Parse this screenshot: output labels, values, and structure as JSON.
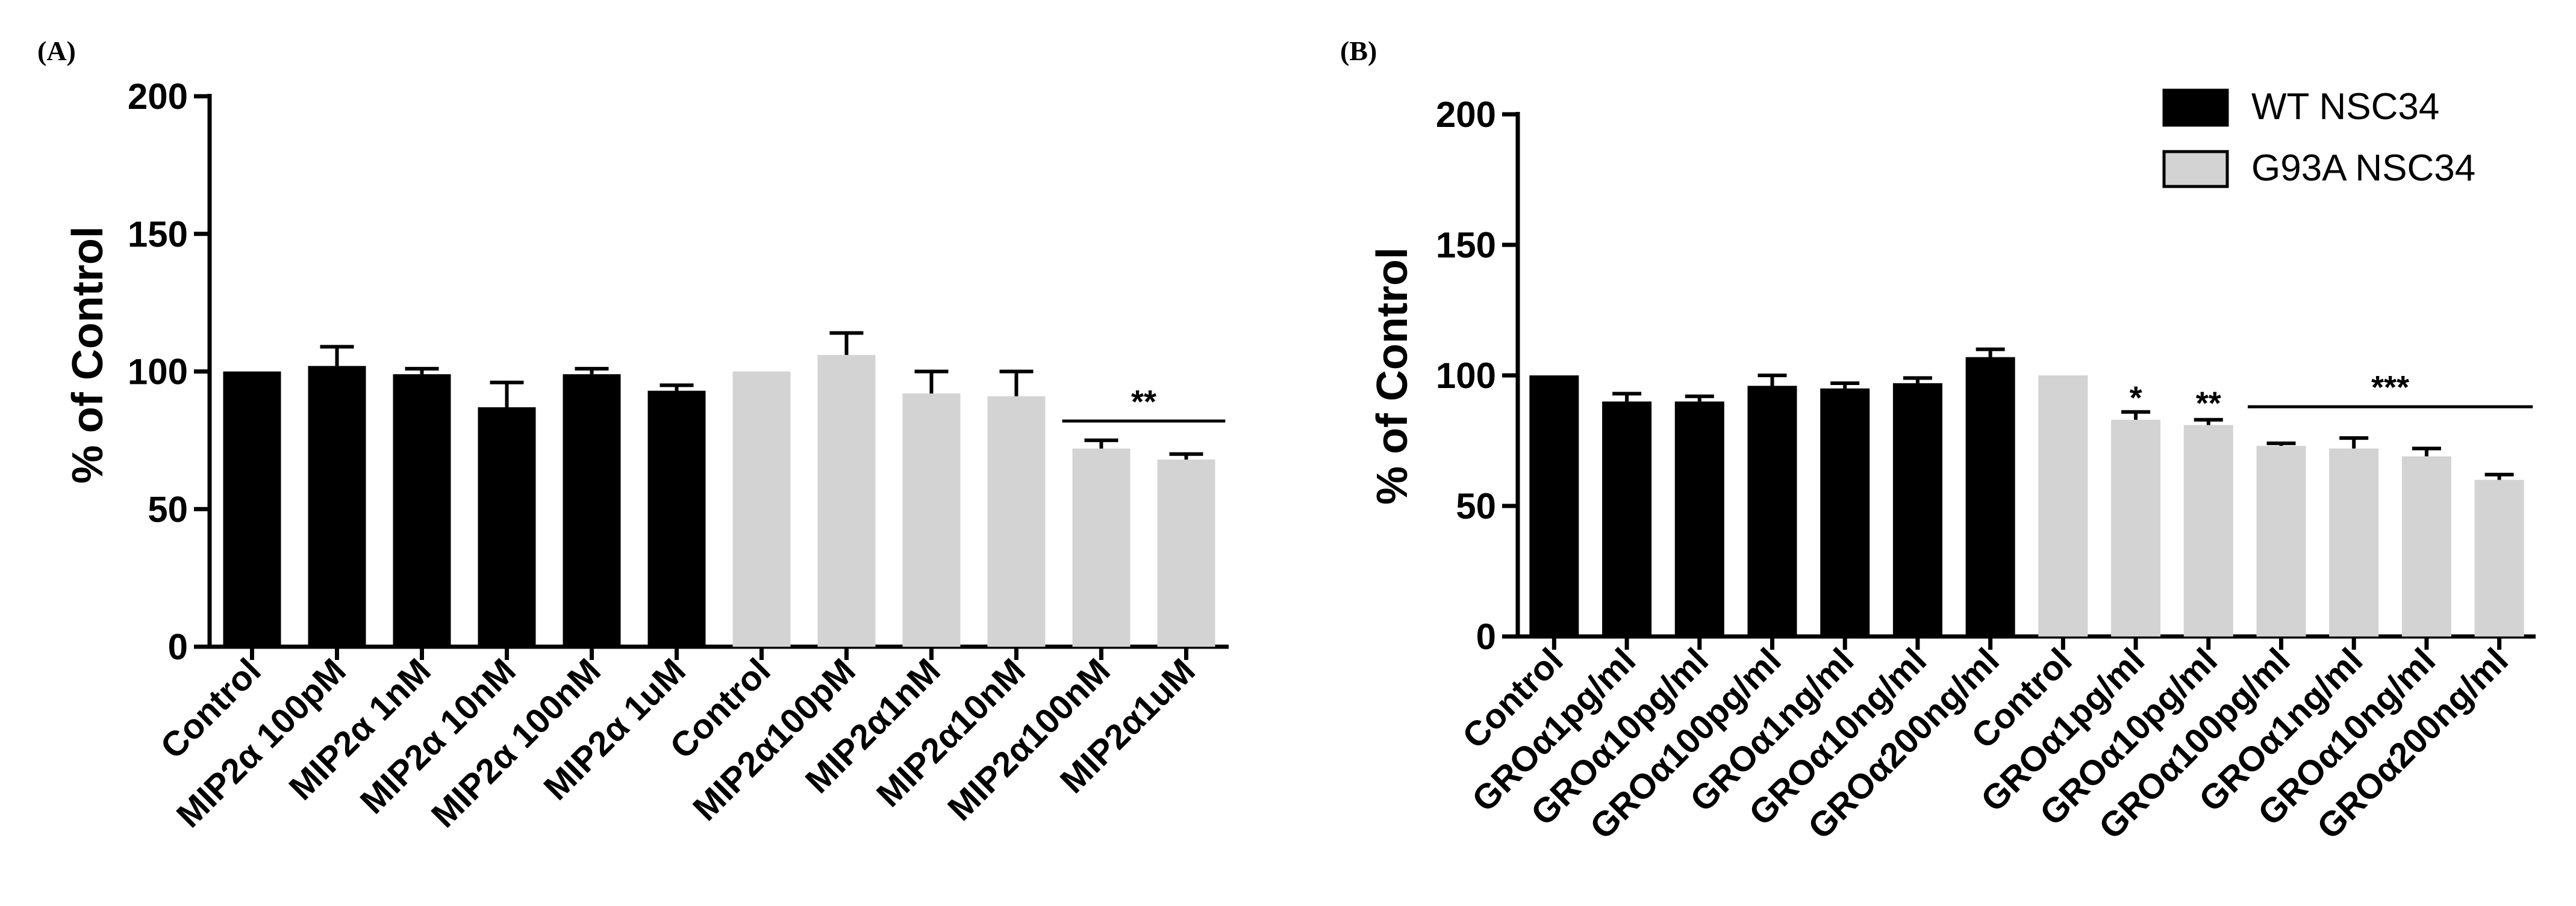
{
  "colors": {
    "wt": "#000000",
    "g93a": "#d3d3d3"
  },
  "legend": [
    {
      "name": "WT NSC34",
      "color": "#000000"
    },
    {
      "name": "G93A NSC34",
      "color": "#d3d3d3"
    }
  ],
  "chart_data": [
    {
      "panel_label": "(A)",
      "type": "bar",
      "ylabel": "% of Control",
      "ylim": [
        0,
        200
      ],
      "yticks": [
        0,
        50,
        100,
        150,
        200
      ],
      "categories": [
        "Control",
        "MIP2α 100pM",
        "MIP2α 1nM",
        "MIP2α 10nM",
        "MIP2α 100nM",
        "MIP2α 1uM",
        "Control",
        "MIP2α100pM",
        "MIP2α1nM",
        "MIP2α10nM",
        "MIP2α100nM",
        "MIP2α1uM"
      ],
      "values": [
        100,
        102,
        99,
        87,
        99,
        93,
        100,
        106,
        92,
        91,
        72,
        68
      ],
      "errors": [
        0,
        7,
        2,
        9,
        2,
        2,
        0,
        8,
        8,
        9,
        3,
        2
      ],
      "groups": [
        "WT NSC34",
        "WT NSC34",
        "WT NSC34",
        "WT NSC34",
        "WT NSC34",
        "WT NSC34",
        "G93A NSC34",
        "G93A NSC34",
        "G93A NSC34",
        "G93A NSC34",
        "G93A NSC34",
        "G93A NSC34"
      ],
      "significance": [
        {
          "from": 10,
          "to": 11,
          "label": "**",
          "y": 82
        }
      ]
    },
    {
      "panel_label": "(B)",
      "type": "bar",
      "ylabel": "% of Control",
      "ylim": [
        0,
        200
      ],
      "yticks": [
        0,
        50,
        100,
        150,
        200
      ],
      "categories": [
        "Control",
        "GROα1pg/ml",
        "GROα10pg/ml",
        "GROα100pg/ml",
        "GROα1ng/ml",
        "GROα10ng/ml",
        "GROα200ng/ml",
        "Control",
        "GROα1pg/ml",
        "GROα10pg/ml",
        "GROα100pg/ml",
        "GROα1ng/ml",
        "GROα10ng/ml",
        "GROα200ng/ml"
      ],
      "values": [
        100,
        90,
        90,
        96,
        95,
        97,
        107,
        100,
        83,
        81,
        73,
        72,
        69,
        60
      ],
      "errors": [
        0,
        3,
        2,
        4,
        2,
        2,
        3,
        0,
        3,
        2,
        1,
        4,
        3,
        2
      ],
      "groups": [
        "WT NSC34",
        "WT NSC34",
        "WT NSC34",
        "WT NSC34",
        "WT NSC34",
        "WT NSC34",
        "WT NSC34",
        "G93A NSC34",
        "G93A NSC34",
        "G93A NSC34",
        "G93A NSC34",
        "G93A NSC34",
        "G93A NSC34",
        "G93A NSC34"
      ],
      "significance": [
        {
          "from": 8,
          "to": 8,
          "label": "*",
          "y": 89
        },
        {
          "from": 9,
          "to": 9,
          "label": "**",
          "y": 87
        },
        {
          "from": 10,
          "to": 13,
          "label": "***",
          "y": 88
        }
      ]
    }
  ]
}
